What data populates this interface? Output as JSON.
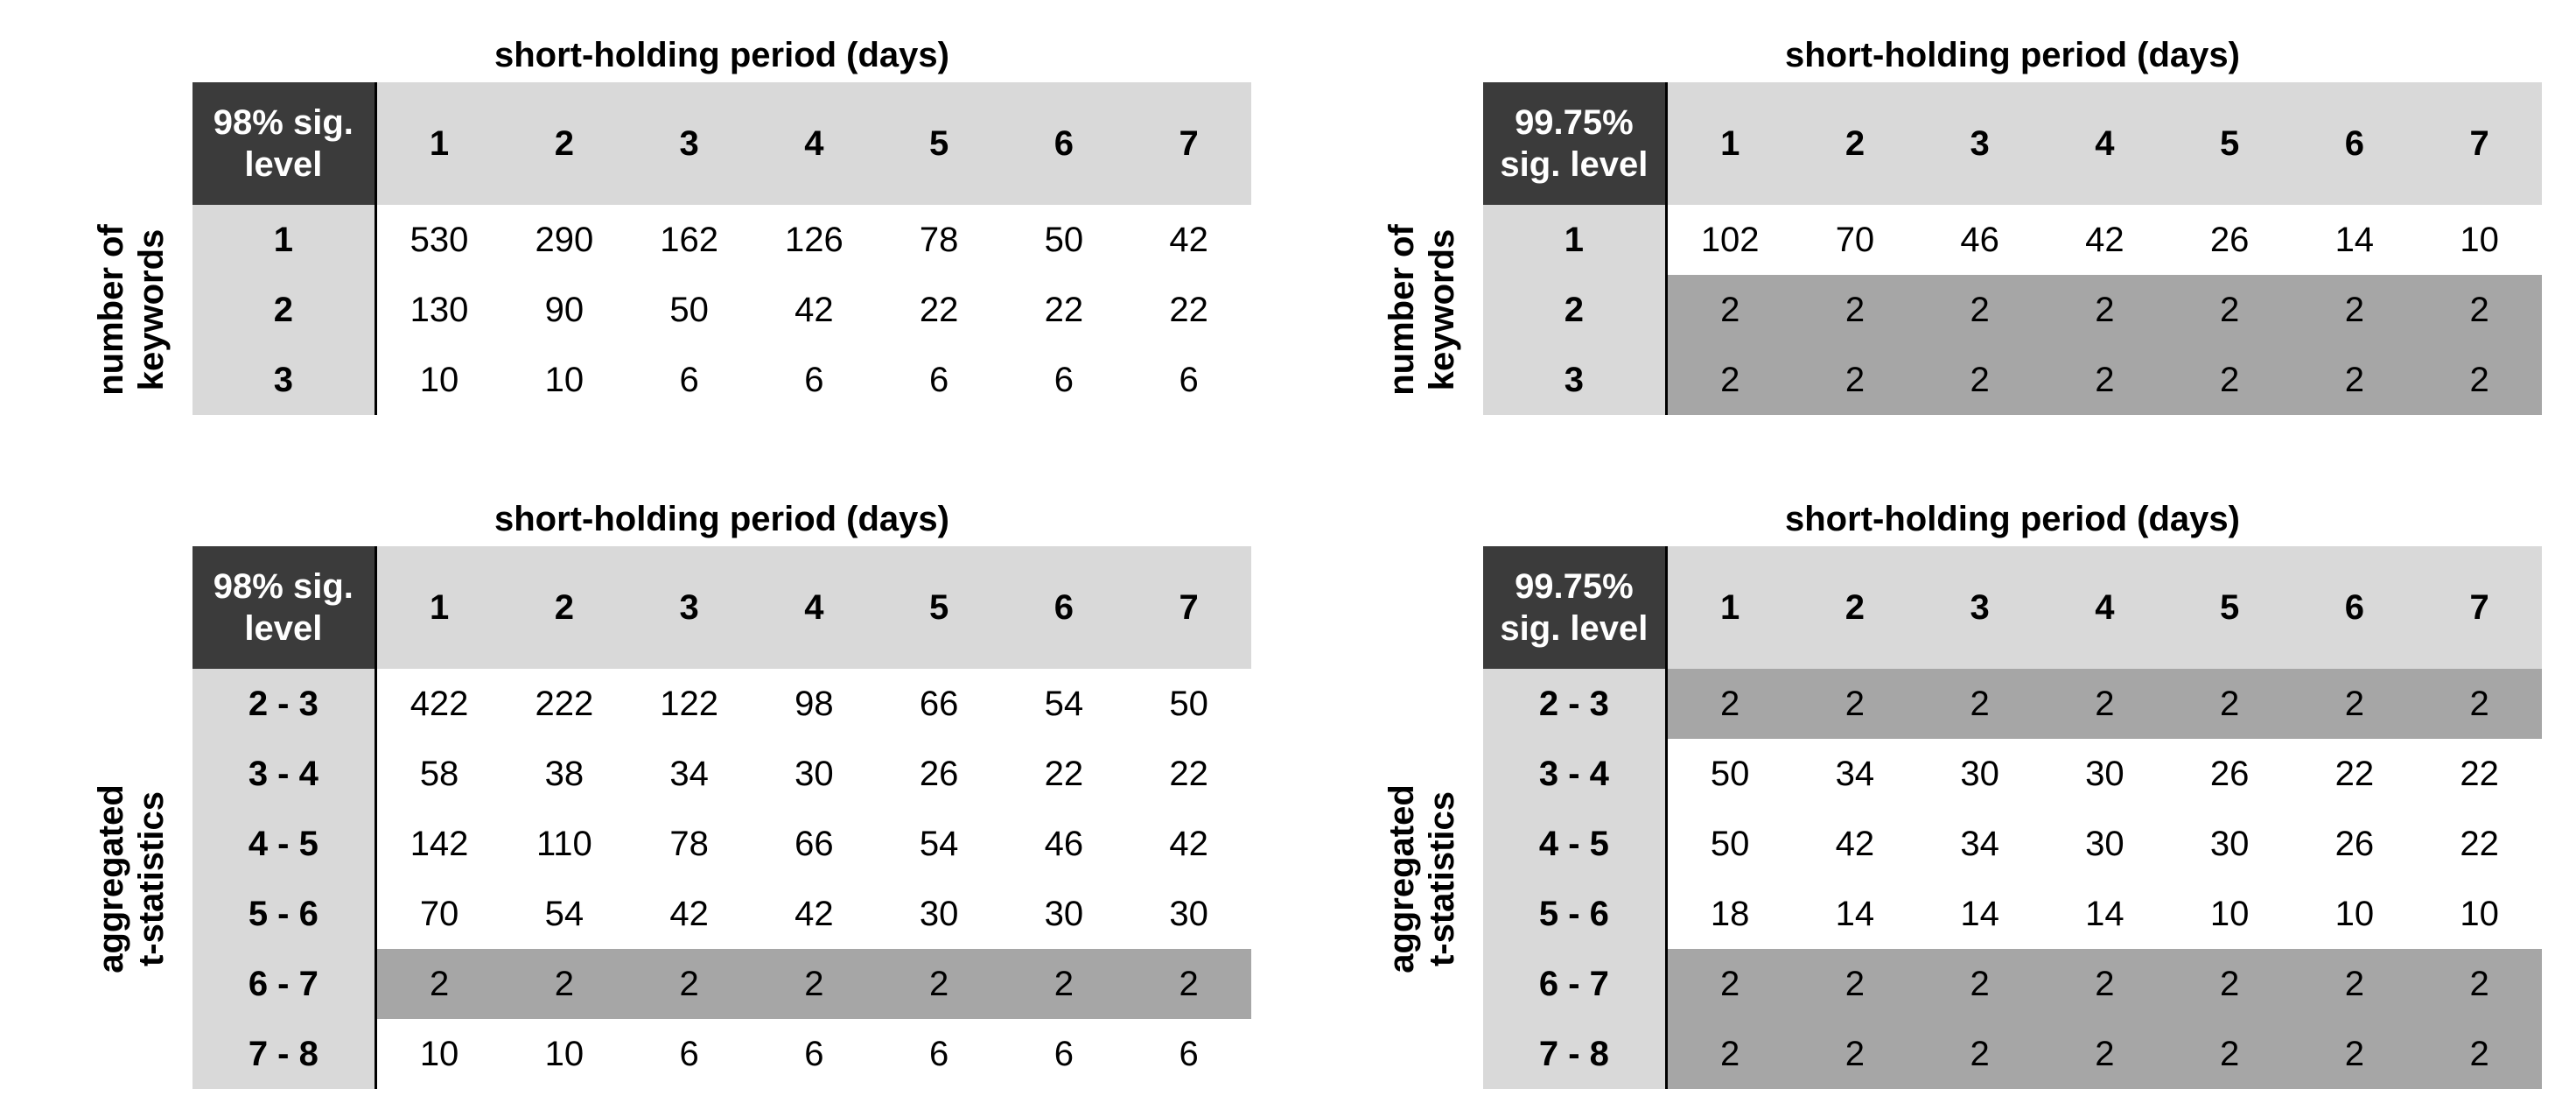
{
  "panels": [
    {
      "title": "short-holding period (days)",
      "corner": [
        "98% sig.",
        "level"
      ],
      "row_axis_label": [
        "number of",
        "keywords"
      ],
      "columns": [
        "1",
        "2",
        "3",
        "4",
        "5",
        "6",
        "7"
      ],
      "rows": [
        {
          "label": "1",
          "values": [
            "530",
            "290",
            "162",
            "126",
            "78",
            "50",
            "42"
          ],
          "shaded": false
        },
        {
          "label": "2",
          "values": [
            "130",
            "90",
            "50",
            "42",
            "22",
            "22",
            "22"
          ],
          "shaded": false
        },
        {
          "label": "3",
          "values": [
            "10",
            "10",
            "6",
            "6",
            "6",
            "6",
            "6"
          ],
          "shaded": false
        }
      ]
    },
    {
      "title": "short-holding period (days)",
      "corner": [
        "99.75%",
        "sig. level"
      ],
      "row_axis_label": [
        "number of",
        "keywords"
      ],
      "columns": [
        "1",
        "2",
        "3",
        "4",
        "5",
        "6",
        "7"
      ],
      "rows": [
        {
          "label": "1",
          "values": [
            "102",
            "70",
            "46",
            "42",
            "26",
            "14",
            "10"
          ],
          "shaded": false
        },
        {
          "label": "2",
          "values": [
            "2",
            "2",
            "2",
            "2",
            "2",
            "2",
            "2"
          ],
          "shaded": true
        },
        {
          "label": "3",
          "values": [
            "2",
            "2",
            "2",
            "2",
            "2",
            "2",
            "2"
          ],
          "shaded": true
        }
      ]
    },
    {
      "title": "short-holding period (days)",
      "corner": [
        "98% sig.",
        "level"
      ],
      "row_axis_label": [
        "aggregated",
        "t-statistics"
      ],
      "columns": [
        "1",
        "2",
        "3",
        "4",
        "5",
        "6",
        "7"
      ],
      "rows": [
        {
          "label": "2 - 3",
          "values": [
            "422",
            "222",
            "122",
            "98",
            "66",
            "54",
            "50"
          ],
          "shaded": false
        },
        {
          "label": "3 - 4",
          "values": [
            "58",
            "38",
            "34",
            "30",
            "26",
            "22",
            "22"
          ],
          "shaded": false
        },
        {
          "label": "4 - 5",
          "values": [
            "142",
            "110",
            "78",
            "66",
            "54",
            "46",
            "42"
          ],
          "shaded": false
        },
        {
          "label": "5 - 6",
          "values": [
            "70",
            "54",
            "42",
            "42",
            "30",
            "30",
            "30"
          ],
          "shaded": false
        },
        {
          "label": "6 - 7",
          "values": [
            "2",
            "2",
            "2",
            "2",
            "2",
            "2",
            "2"
          ],
          "shaded": true
        },
        {
          "label": "7 - 8",
          "values": [
            "10",
            "10",
            "6",
            "6",
            "6",
            "6",
            "6"
          ],
          "shaded": false
        }
      ]
    },
    {
      "title": "short-holding period (days)",
      "corner": [
        "99.75%",
        "sig. level"
      ],
      "row_axis_label": [
        "aggregated",
        "t-statistics"
      ],
      "columns": [
        "1",
        "2",
        "3",
        "4",
        "5",
        "6",
        "7"
      ],
      "rows": [
        {
          "label": "2 - 3",
          "values": [
            "2",
            "2",
            "2",
            "2",
            "2",
            "2",
            "2"
          ],
          "shaded": true
        },
        {
          "label": "3 - 4",
          "values": [
            "50",
            "34",
            "30",
            "30",
            "26",
            "22",
            "22"
          ],
          "shaded": false
        },
        {
          "label": "4 - 5",
          "values": [
            "50",
            "42",
            "34",
            "30",
            "30",
            "26",
            "22"
          ],
          "shaded": false
        },
        {
          "label": "5 - 6",
          "values": [
            "18",
            "14",
            "14",
            "14",
            "10",
            "10",
            "10"
          ],
          "shaded": false
        },
        {
          "label": "6 - 7",
          "values": [
            "2",
            "2",
            "2",
            "2",
            "2",
            "2",
            "2"
          ],
          "shaded": true
        },
        {
          "label": "7 - 8",
          "values": [
            "2",
            "2",
            "2",
            "2",
            "2",
            "2",
            "2"
          ],
          "shaded": true
        }
      ]
    }
  ]
}
